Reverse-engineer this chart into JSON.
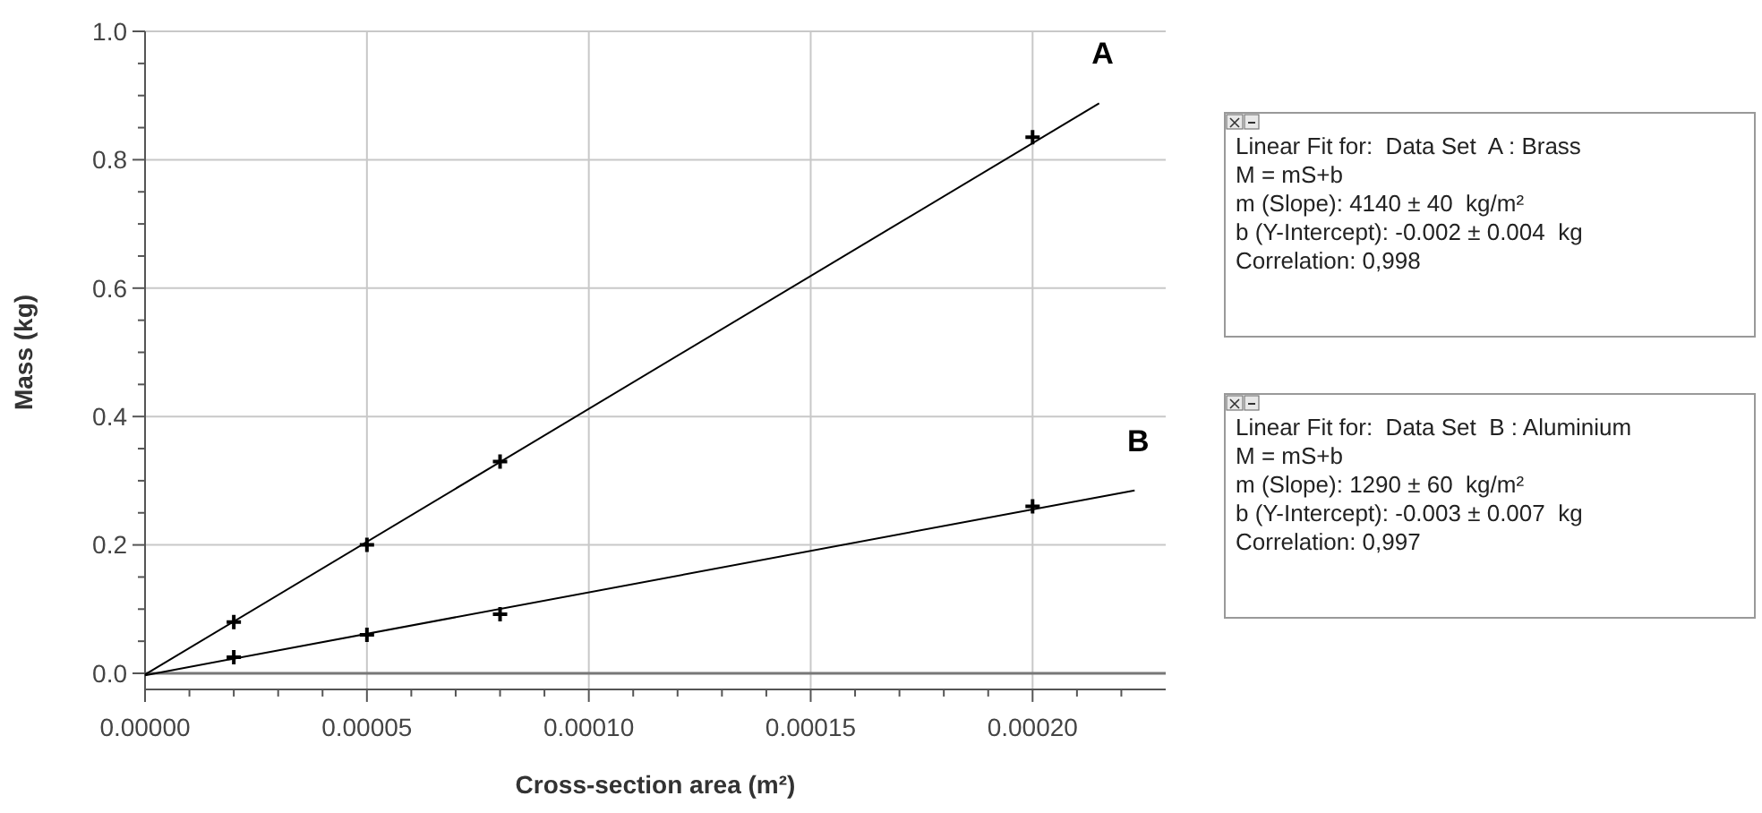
{
  "chart_data": {
    "type": "scatter",
    "xlabel": "Cross-section area (m²)",
    "ylabel": "Mass (kg)",
    "xlim": [
      0,
      0.00023
    ],
    "ylim": [
      -0.025,
      1.0
    ],
    "xticks": [
      {
        "value": 0,
        "label": "0.00000"
      },
      {
        "value": 1e-05,
        "label": null
      },
      {
        "value": 2e-05,
        "label": null
      },
      {
        "value": 3e-05,
        "label": null
      },
      {
        "value": 4e-05,
        "label": null
      },
      {
        "value": 5e-05,
        "label": "0.00005"
      },
      {
        "value": 6e-05,
        "label": null
      },
      {
        "value": 7e-05,
        "label": null
      },
      {
        "value": 8e-05,
        "label": null
      },
      {
        "value": 9e-05,
        "label": null
      },
      {
        "value": 0.0001,
        "label": "0.00010"
      },
      {
        "value": 0.00011,
        "label": null
      },
      {
        "value": 0.00012,
        "label": null
      },
      {
        "value": 0.00013,
        "label": null
      },
      {
        "value": 0.00014,
        "label": null
      },
      {
        "value": 0.00015,
        "label": "0.00015"
      },
      {
        "value": 0.00016,
        "label": null
      },
      {
        "value": 0.00017,
        "label": null
      },
      {
        "value": 0.00018,
        "label": null
      },
      {
        "value": 0.00019,
        "label": null
      },
      {
        "value": 0.0002,
        "label": "0.00020"
      },
      {
        "value": 0.00021,
        "label": null
      },
      {
        "value": 0.00022,
        "label": null
      }
    ],
    "yticks": [
      {
        "value": 0,
        "label": "0.0"
      },
      {
        "value": 0.05,
        "label": null
      },
      {
        "value": 0.1,
        "label": null
      },
      {
        "value": 0.15,
        "label": null
      },
      {
        "value": 0.2,
        "label": "0.2"
      },
      {
        "value": 0.25,
        "label": null
      },
      {
        "value": 0.3,
        "label": null
      },
      {
        "value": 0.35,
        "label": null
      },
      {
        "value": 0.4,
        "label": "0.4"
      },
      {
        "value": 0.45,
        "label": null
      },
      {
        "value": 0.5,
        "label": null
      },
      {
        "value": 0.55,
        "label": null
      },
      {
        "value": 0.6,
        "label": "0.6"
      },
      {
        "value": 0.65,
        "label": null
      },
      {
        "value": 0.7,
        "label": null
      },
      {
        "value": 0.75,
        "label": null
      },
      {
        "value": 0.8,
        "label": "0.8"
      },
      {
        "value": 0.85,
        "label": null
      },
      {
        "value": 0.9,
        "label": null
      },
      {
        "value": 0.95,
        "label": null
      },
      {
        "value": 1.0,
        "label": "1.0"
      }
    ],
    "grid": true,
    "series": [
      {
        "marker": "cross",
        "color": "#000000",
        "x": [
          2e-05,
          5e-05,
          8e-05,
          0.0002
        ],
        "values": [
          0.08,
          0.2,
          0.33,
          0.835
        ]
      },
      {
        "marker": "cross",
        "color": "#000000",
        "x": [
          2e-05,
          5e-05,
          8e-05,
          0.0002
        ],
        "values": [
          0.025,
          0.06,
          0.092,
          0.26
        ]
      },
      {
        "type": "line",
        "name": "A",
        "marker": "none",
        "color": "#000000",
        "x": [
          0,
          0.000215
        ],
        "values": [
          -0.002,
          0.888
        ]
      },
      {
        "type": "line",
        "name": "B",
        "marker": "none",
        "color": "#000000",
        "x": [
          0,
          0.000223
        ],
        "values": [
          -0.003,
          0.285
        ]
      }
    ],
    "annotations": [
      "Linear Fit for:  Data Set  A : Brass\nM = mS+b\nm (Slope): 4140 ± 40  kg/m²\nb (Y-Intercept): -0.002 ± 0.004  kg\nCorrelation: 0,998",
      "Linear Fit for:  Data Set  B : Aluminium\nM = mS+b\nm (Slope): 1290 ± 60  kg/m²\nb (Y-Intercept): -0.003 ± 0.007  kg\nCorrelation: 0,997"
    ]
  }
}
